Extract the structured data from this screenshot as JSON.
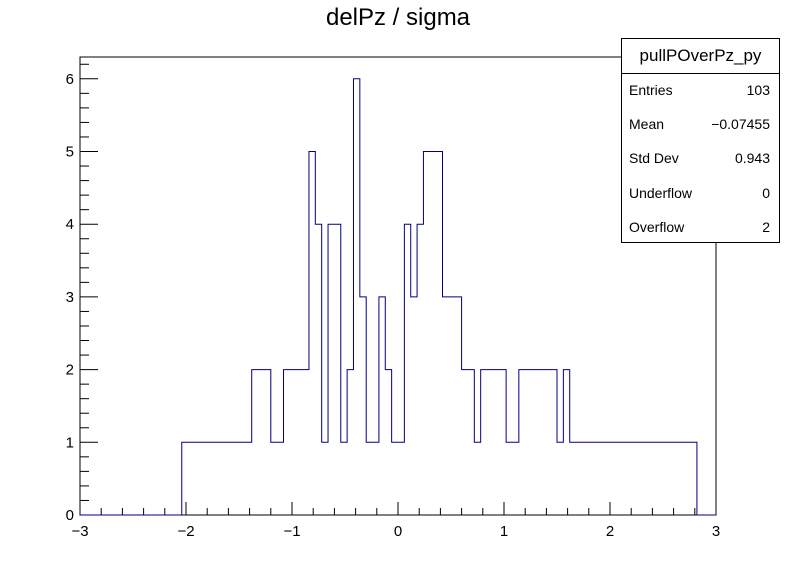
{
  "chart_data": {
    "type": "histogram",
    "title": "delPz / sigma",
    "xlim": [
      -3,
      3
    ],
    "ylim": [
      0,
      6.3
    ],
    "x_ticks": [
      "−3",
      "−2",
      "−1",
      "0",
      "1",
      "2",
      "3"
    ],
    "y_ticks": [
      "0",
      "1",
      "2",
      "3",
      "4",
      "5",
      "6"
    ],
    "bin_width": 0.06,
    "line_color": "#000080",
    "bins": [
      {
        "x0": -2.04,
        "x1": -1.98,
        "count": 1
      },
      {
        "x0": -1.86,
        "x1": -1.8,
        "count": 1
      },
      {
        "x0": -1.74,
        "x1": -1.62,
        "count": 1
      },
      {
        "x0": -1.56,
        "x1": -1.5,
        "count": 1
      },
      {
        "x0": -1.44,
        "x1": -1.38,
        "count": 1
      },
      {
        "x0": -1.38,
        "x1": -1.32,
        "count": 2
      },
      {
        "x0": -1.2,
        "x1": -1.08,
        "count": 1
      },
      {
        "x0": -1.08,
        "x1": -0.84,
        "count": 2
      },
      {
        "x0": -0.84,
        "x1": -0.78,
        "count": 5
      },
      {
        "x0": -0.78,
        "x1": -0.72,
        "count": 4
      },
      {
        "x0": -0.72,
        "x1": -0.66,
        "count": 1
      },
      {
        "x0": -0.66,
        "x1": -0.54,
        "count": 4
      },
      {
        "x0": -0.54,
        "x1": -0.48,
        "count": 1
      },
      {
        "x0": -0.48,
        "x1": -0.42,
        "count": 2
      },
      {
        "x0": -0.42,
        "x1": -0.36,
        "count": 6
      },
      {
        "x0": -0.36,
        "x1": -0.3,
        "count": 3
      },
      {
        "x0": -0.3,
        "x1": -0.18,
        "count": 1
      },
      {
        "x0": -0.18,
        "x1": -0.12,
        "count": 3
      },
      {
        "x0": -0.12,
        "x1": -0.06,
        "count": 2
      },
      {
        "x0": -0.06,
        "x1": 0.06,
        "count": 1
      },
      {
        "x0": 0.06,
        "x1": 0.12,
        "count": 4
      },
      {
        "x0": 0.12,
        "x1": 0.18,
        "count": 3
      },
      {
        "x0": 0.18,
        "x1": 0.24,
        "count": 4
      },
      {
        "x0": 0.24,
        "x1": 0.3,
        "count": 5
      },
      {
        "x0": 0.36,
        "x1": 0.42,
        "count": 5
      },
      {
        "x0": 0.42,
        "x1": 0.48,
        "count": 3
      },
      {
        "x0": 0.6,
        "x1": 0.72,
        "count": 2
      },
      {
        "x0": 0.72,
        "x1": 0.78,
        "count": 1
      },
      {
        "x0": 0.78,
        "x1": 0.84,
        "count": 2
      },
      {
        "x0": 1.02,
        "x1": 1.14,
        "count": 1
      },
      {
        "x0": 1.14,
        "x1": 1.2,
        "count": 2
      },
      {
        "x0": 1.44,
        "x1": 1.5,
        "count": 2
      },
      {
        "x0": 1.5,
        "x1": 1.56,
        "count": 1
      },
      {
        "x0": 1.56,
        "x1": 1.62,
        "count": 2
      },
      {
        "x0": 1.62,
        "x1": 1.68,
        "count": 1
      },
      {
        "x0": 2.28,
        "x1": 2.4,
        "count": 1
      },
      {
        "x0": 2.58,
        "x1": 2.64,
        "count": 1
      },
      {
        "x0": 2.76,
        "x1": 2.82,
        "count": 1
      }
    ]
  },
  "stats": {
    "name": "pullPOverPz_py",
    "rows": [
      {
        "label": "Entries",
        "value": "103"
      },
      {
        "label": "Mean",
        "value": "−0.07455"
      },
      {
        "label": "Std Dev",
        "value": "0.943"
      },
      {
        "label": "Underflow",
        "value": "0"
      },
      {
        "label": "Overflow",
        "value": "2"
      }
    ]
  }
}
